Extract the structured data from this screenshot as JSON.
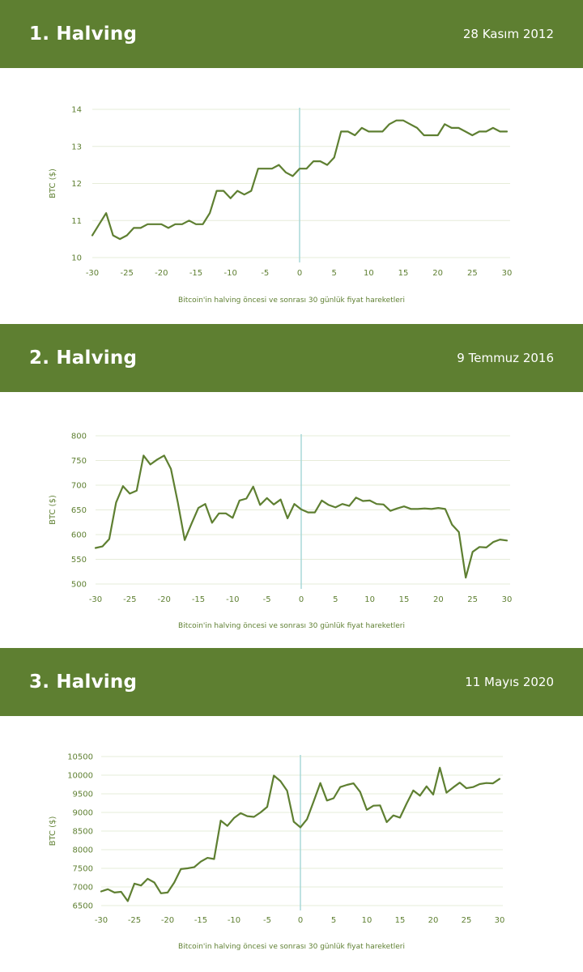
{
  "colors": {
    "header_bg": "#5e7f31",
    "header_text": "#ffffff",
    "line": "#5e7f31",
    "zero_marker": "#a8d8d8",
    "grid": "#e6ecd9",
    "tick_text": "#5e7f31"
  },
  "sections": [
    {
      "title": "1. Halving",
      "date": "28 Kasım 2012",
      "caption": "Bitcoin'in halving öncesi ve sonrası 30 günlük fiyat hareketleri"
    },
    {
      "title": "2. Halving",
      "date": "9 Temmuz 2016",
      "caption": "Bitcoin'in halving öncesi ve sonrası 30 günlük fiyat hareketleri"
    },
    {
      "title": "3. Halving",
      "date": "11 Mayıs 2020",
      "caption": "Bitcoin'in halving öncesi ve sonrası 30 günlük fiyat hareketleri"
    }
  ],
  "chart_data": [
    {
      "type": "line",
      "title": "",
      "xlabel": "",
      "ylabel": "BTC ($)",
      "xlim": [
        -30,
        30
      ],
      "ylim": [
        10,
        14
      ],
      "xticks": [
        -30,
        -25,
        -20,
        -15,
        -10,
        -5,
        0,
        5,
        10,
        15,
        20,
        25,
        30
      ],
      "yticks": [
        10,
        11,
        12,
        13,
        14
      ],
      "grid": true,
      "zero_line": 0,
      "series": [
        {
          "x": [
            -30,
            -29,
            -28,
            -27,
            -26,
            -25,
            -24,
            -23,
            -22,
            -21,
            -20,
            -19,
            -18,
            -17,
            -16,
            -15,
            -14,
            -13,
            -12,
            -11,
            -10,
            -9,
            -8,
            -7,
            -6,
            -5,
            -4,
            -3,
            -2,
            -1,
            0,
            1,
            2,
            3,
            4,
            5,
            6,
            7,
            8,
            9,
            10,
            11,
            12,
            13,
            14,
            15,
            16,
            17,
            18,
            19,
            20,
            21,
            22,
            23,
            24,
            25,
            26,
            27,
            28,
            29,
            30
          ],
          "values": [
            10.6,
            10.9,
            11.2,
            10.6,
            10.5,
            10.6,
            10.8,
            10.8,
            10.9,
            10.9,
            10.9,
            10.8,
            10.9,
            10.9,
            11.0,
            10.9,
            10.9,
            11.2,
            11.8,
            11.8,
            11.6,
            11.8,
            11.7,
            11.8,
            12.4,
            12.4,
            12.4,
            12.5,
            12.3,
            12.2,
            12.4,
            12.4,
            12.6,
            12.6,
            12.5,
            12.7,
            13.4,
            13.4,
            13.3,
            13.5,
            13.4,
            13.4,
            13.4,
            13.6,
            13.7,
            13.7,
            13.6,
            13.5,
            13.3,
            13.3,
            13.3,
            13.6,
            13.5,
            13.5,
            13.4,
            13.3,
            13.4,
            13.4,
            13.5,
            13.4,
            13.4
          ]
        }
      ]
    },
    {
      "type": "line",
      "title": "",
      "xlabel": "",
      "ylabel": "BTC ($)",
      "xlim": [
        -30,
        30
      ],
      "ylim": [
        500,
        800
      ],
      "xticks": [
        -30,
        -25,
        -20,
        -15,
        -10,
        -5,
        0,
        5,
        10,
        15,
        20,
        25,
        30
      ],
      "yticks": [
        500,
        550,
        600,
        650,
        700,
        750,
        800
      ],
      "grid": true,
      "zero_line": 0,
      "series": [
        {
          "x": [
            -30,
            -29,
            -28,
            -27,
            -26,
            -25,
            -24,
            -23,
            -22,
            -21,
            -20,
            -19,
            -18,
            -17,
            -16,
            -15,
            -14,
            -13,
            -12,
            -11,
            -10,
            -9,
            -8,
            -7,
            -6,
            -5,
            -4,
            -3,
            -2,
            -1,
            0,
            1,
            2,
            3,
            4,
            5,
            6,
            7,
            8,
            9,
            10,
            11,
            12,
            13,
            14,
            15,
            16,
            17,
            18,
            19,
            20,
            21,
            22,
            23,
            24,
            25,
            26,
            27,
            28,
            29,
            30
          ],
          "values": [
            573,
            576,
            591,
            665,
            698,
            683,
            689,
            760,
            742,
            752,
            760,
            733,
            665,
            589,
            622,
            654,
            662,
            624,
            643,
            643,
            634,
            669,
            673,
            697,
            660,
            674,
            661,
            671,
            633,
            662,
            651,
            645,
            645,
            669,
            660,
            655,
            662,
            658,
            675,
            668,
            669,
            662,
            661,
            648,
            653,
            657,
            652,
            652,
            653,
            652,
            654,
            652,
            620,
            605,
            513,
            565,
            575,
            574,
            585,
            590,
            588
          ]
        }
      ]
    },
    {
      "type": "line",
      "title": "",
      "xlabel": "",
      "ylabel": "BTC ($)",
      "xlim": [
        -30,
        30
      ],
      "ylim": [
        6500,
        10500
      ],
      "xticks": [
        -30,
        -25,
        -20,
        -15,
        -10,
        -5,
        0,
        5,
        10,
        15,
        20,
        25,
        30
      ],
      "yticks": [
        6500,
        7000,
        7500,
        8000,
        8500,
        9000,
        9500,
        10000,
        10500
      ],
      "grid": true,
      "zero_line": 0,
      "series": [
        {
          "x": [
            -30,
            -29,
            -28,
            -27,
            -26,
            -25,
            -24,
            -23,
            -22,
            -21,
            -20,
            -19,
            -18,
            -17,
            -16,
            -15,
            -14,
            -13,
            -12,
            -11,
            -10,
            -9,
            -8,
            -7,
            -6,
            -5,
            -4,
            -3,
            -2,
            -1,
            0,
            1,
            2,
            3,
            4,
            5,
            6,
            7,
            8,
            9,
            10,
            11,
            12,
            13,
            14,
            15,
            16,
            17,
            18,
            19,
            20,
            21,
            22,
            23,
            24,
            25,
            26,
            27,
            28,
            29,
            30
          ],
          "values": [
            6880,
            6940,
            6850,
            6870,
            6620,
            7090,
            7040,
            7220,
            7120,
            6830,
            6850,
            7120,
            7480,
            7500,
            7530,
            7680,
            7780,
            7750,
            8780,
            8640,
            8850,
            8980,
            8900,
            8880,
            9000,
            9150,
            9990,
            9840,
            9580,
            8750,
            8600,
            8820,
            9300,
            9790,
            9320,
            9380,
            9680,
            9740,
            9780,
            9550,
            9070,
            9180,
            9190,
            8740,
            8920,
            8860,
            9240,
            9590,
            9450,
            9700,
            9480,
            10200,
            9530,
            9670,
            9800,
            9650,
            9680,
            9760,
            9790,
            9780,
            9900
          ]
        }
      ]
    }
  ]
}
